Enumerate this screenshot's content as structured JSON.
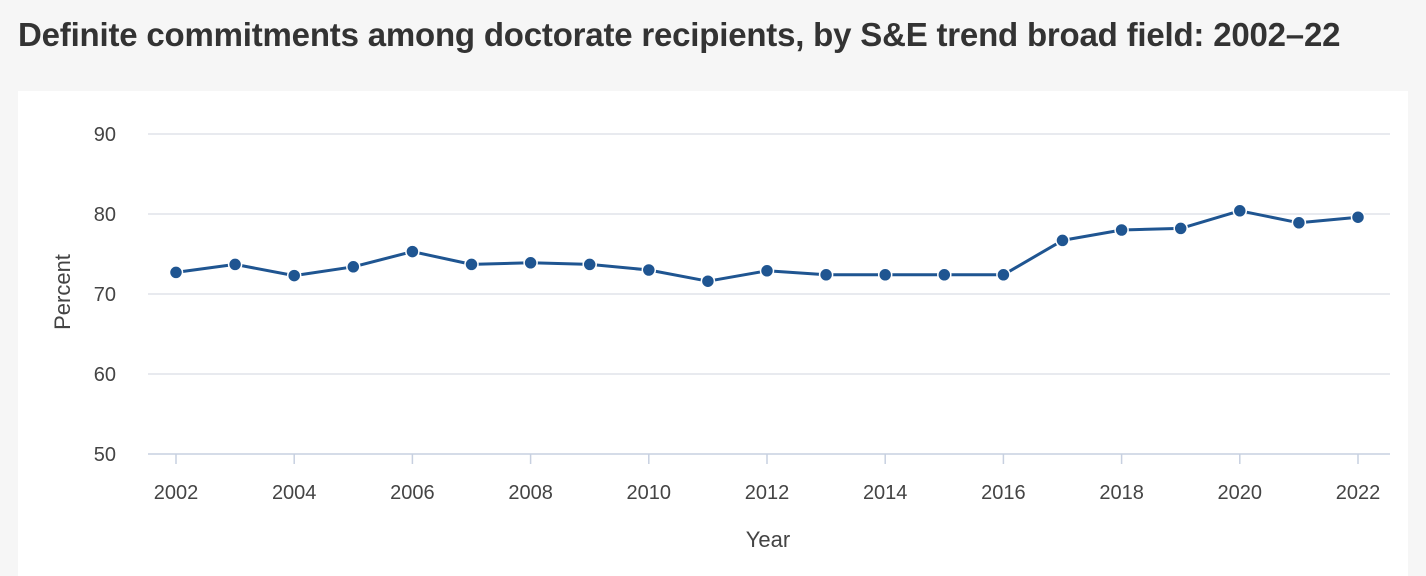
{
  "chart_data": {
    "type": "line",
    "title": "Definite commitments among doctorate recipients, by S&E trend broad field: 2002–22",
    "xlabel": "Year",
    "ylabel": "Percent",
    "ylim": [
      50,
      90
    ],
    "yticks": [
      50,
      60,
      70,
      80,
      90
    ],
    "xticks": [
      2002,
      2004,
      2006,
      2008,
      2010,
      2012,
      2014,
      2016,
      2018,
      2020,
      2022
    ],
    "grid": true,
    "series": [
      {
        "name": "Definite commitments",
        "color": "#1f5591",
        "x": [
          2002,
          2003,
          2004,
          2005,
          2006,
          2007,
          2008,
          2009,
          2010,
          2011,
          2012,
          2013,
          2014,
          2015,
          2016,
          2017,
          2018,
          2019,
          2020,
          2021,
          2022
        ],
        "values": [
          72.7,
          73.7,
          72.3,
          73.4,
          75.3,
          73.7,
          73.9,
          73.7,
          73.0,
          71.6,
          72.9,
          72.4,
          72.4,
          72.4,
          72.4,
          76.7,
          78.0,
          78.2,
          80.4,
          78.9,
          79.6
        ]
      }
    ]
  }
}
